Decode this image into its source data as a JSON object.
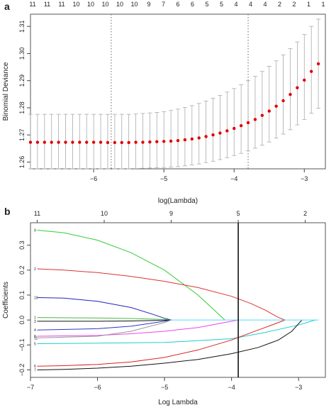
{
  "chart_data": [
    {
      "panel_label": "a",
      "type": "scatter",
      "xlabel": "log(Lambda)",
      "ylabel": "Binomial Deviance",
      "xlim": [
        -6.9,
        -2.7
      ],
      "ylim": [
        1.2575,
        1.3145
      ],
      "x_ticks": [
        -6,
        -5,
        -4,
        -3
      ],
      "y_ticks": [
        1.26,
        1.27,
        1.28,
        1.29,
        1.3,
        1.31
      ],
      "top_axis_labels": [
        "11",
        "11",
        "11",
        "10",
        "10",
        "10",
        "10",
        "10",
        "9",
        "7",
        "6",
        "6",
        "5",
        "5",
        "4",
        "4",
        "4",
        "2",
        "2",
        "1",
        "1"
      ],
      "vlines": [
        -5.75,
        -3.8
      ],
      "points": {
        "x": [
          -6.9,
          -6.8,
          -6.7,
          -6.6,
          -6.5,
          -6.4,
          -6.3,
          -6.2,
          -6.1,
          -6.0,
          -5.9,
          -5.8,
          -5.7,
          -5.6,
          -5.5,
          -5.4,
          -5.3,
          -5.2,
          -5.1,
          -5.0,
          -4.9,
          -4.8,
          -4.7,
          -4.6,
          -4.5,
          -4.4,
          -4.3,
          -4.2,
          -4.1,
          -4.0,
          -3.9,
          -3.8,
          -3.7,
          -3.6,
          -3.5,
          -3.4,
          -3.3,
          -3.2,
          -3.1,
          -3.0,
          -2.9,
          -2.8
        ],
        "y": [
          1.2673,
          1.2673,
          1.2673,
          1.2673,
          1.2673,
          1.2673,
          1.2673,
          1.2673,
          1.2673,
          1.2673,
          1.2673,
          1.2672,
          1.2672,
          1.2672,
          1.2672,
          1.2673,
          1.2673,
          1.2674,
          1.2675,
          1.2676,
          1.2677,
          1.2679,
          1.2682,
          1.2685,
          1.2689,
          1.2694,
          1.27,
          1.2707,
          1.2715,
          1.2724,
          1.2734,
          1.2745,
          1.2757,
          1.2772,
          1.2788,
          1.2806,
          1.2826,
          1.2849,
          1.2874,
          1.2902,
          1.2934,
          1.2962
        ],
        "lower": [
          1.2575,
          1.2575,
          1.2575,
          1.2575,
          1.2575,
          1.2575,
          1.2575,
          1.2575,
          1.2575,
          1.2575,
          1.2575,
          1.2575,
          1.2575,
          1.2575,
          1.2575,
          1.2576,
          1.2577,
          1.2578,
          1.2579,
          1.258,
          1.2581,
          1.2583,
          1.2586,
          1.2589,
          1.2593,
          1.2598,
          1.2603,
          1.2609,
          1.2616,
          1.2624,
          1.2632,
          1.2641,
          1.2651,
          1.2662,
          1.2674,
          1.2688,
          1.2703,
          1.2719,
          1.2737,
          1.2757,
          1.278,
          1.2798
        ],
        "upper": [
          1.2776,
          1.2776,
          1.2776,
          1.2776,
          1.2776,
          1.2776,
          1.2776,
          1.2776,
          1.2776,
          1.2776,
          1.2776,
          1.2776,
          1.2776,
          1.2776,
          1.2776,
          1.2777,
          1.2779,
          1.2781,
          1.2783,
          1.2786,
          1.279,
          1.2795,
          1.2801,
          1.2808,
          1.2816,
          1.2825,
          1.2835,
          1.2846,
          1.2858,
          1.2871,
          1.2885,
          1.29,
          1.2916,
          1.2934,
          1.2953,
          1.2973,
          1.2995,
          1.3018,
          1.3043,
          1.307,
          1.31,
          1.3127
        ]
      },
      "point_color": "#e00000",
      "errorbar_color": "#aaaaaa"
    },
    {
      "panel_label": "b",
      "type": "line",
      "xlabel": "Log Lambda",
      "ylabel": "Coefficients",
      "xlim": [
        -7.0,
        -2.6
      ],
      "ylim": [
        -0.23,
        0.39
      ],
      "x_ticks": [
        -7,
        -6,
        -5,
        -4,
        -3
      ],
      "y_ticks": [
        -0.2,
        -0.1,
        0.0,
        0.1,
        0.2,
        0.3
      ],
      "top_axis_ticks": [
        -6.9,
        -5.9,
        -4.9,
        -3.9,
        -2.9
      ],
      "top_axis_labels": [
        "11",
        "10",
        "9",
        "5",
        "2"
      ],
      "vline": -3.9,
      "series": [
        {
          "label": "9",
          "color": "#33cc33",
          "x": [
            -6.9,
            -6.5,
            -6.0,
            -5.5,
            -5.0,
            -4.5,
            -4.3,
            -4.1
          ],
          "y": [
            0.36,
            0.35,
            0.32,
            0.27,
            0.2,
            0.1,
            0.05,
            0.0
          ]
        },
        {
          "label": "2",
          "color": "#dd3333",
          "x": [
            -6.9,
            -6.5,
            -6.0,
            -5.5,
            -5.0,
            -4.5,
            -4.0,
            -3.7,
            -3.5,
            -3.3,
            -3.2
          ],
          "y": [
            0.205,
            0.2,
            0.19,
            0.175,
            0.155,
            0.13,
            0.095,
            0.065,
            0.04,
            0.01,
            0.0
          ]
        },
        {
          "label": "10",
          "color": "#2222bb",
          "x": [
            -6.9,
            -6.5,
            -6.0,
            -5.5,
            -5.2,
            -5.0,
            -4.9
          ],
          "y": [
            0.09,
            0.088,
            0.075,
            0.05,
            0.025,
            0.007,
            0.0
          ]
        },
        {
          "label": "1",
          "color": "#44bb44",
          "x": [
            -6.9,
            -6.0,
            -5.5,
            -5.0,
            -4.9
          ],
          "y": [
            0.01,
            0.008,
            0.006,
            0.002,
            0.0
          ]
        },
        {
          "label": "3",
          "color": "#111111",
          "x": [
            -6.9,
            -6.0,
            -5.5,
            -5.0,
            -4.9
          ],
          "y": [
            -0.005,
            -0.005,
            -0.004,
            -0.001,
            0.0
          ]
        },
        {
          "label": "4",
          "color": "#3333cc",
          "x": [
            -6.9,
            -6.0,
            -5.5,
            -5.0,
            -4.9
          ],
          "y": [
            -0.04,
            -0.035,
            -0.025,
            -0.005,
            0.0
          ]
        },
        {
          "label": "8",
          "color": "#ee44ee",
          "x": [
            -6.9,
            -6.0,
            -5.5,
            -5.0,
            -4.5,
            -4.2,
            -4.0,
            -3.9
          ],
          "y": [
            -0.065,
            -0.062,
            -0.055,
            -0.045,
            -0.03,
            -0.015,
            -0.005,
            0.0
          ]
        },
        {
          "label": "11",
          "color": "#999999",
          "x": [
            -6.9,
            -6.0,
            -5.5,
            -5.0,
            -4.9
          ],
          "y": [
            -0.072,
            -0.065,
            -0.045,
            -0.01,
            0.0
          ]
        },
        {
          "label": "5",
          "color": "#22cccc",
          "x": [
            -6.9,
            -6.0,
            -5.0,
            -4.0,
            -3.5,
            -3.0,
            -2.75
          ],
          "y": [
            -0.095,
            -0.093,
            -0.09,
            -0.075,
            -0.05,
            -0.02,
            0.0
          ]
        },
        {
          "label": "6",
          "color": "#dd2222",
          "x": [
            -6.9,
            -6.5,
            -6.0,
            -5.5,
            -5.0,
            -4.5,
            -4.0,
            -3.7,
            -3.5,
            -3.3,
            -3.2
          ],
          "y": [
            -0.185,
            -0.183,
            -0.178,
            -0.168,
            -0.15,
            -0.12,
            -0.08,
            -0.05,
            -0.03,
            -0.01,
            0.0
          ]
        },
        {
          "label": "7",
          "color": "#111111",
          "x": [
            -6.9,
            -6.5,
            -6.0,
            -5.5,
            -5.0,
            -4.5,
            -4.0,
            -3.6,
            -3.3,
            -3.1,
            -2.95
          ],
          "y": [
            -0.2,
            -0.198,
            -0.193,
            -0.185,
            -0.173,
            -0.158,
            -0.135,
            -0.11,
            -0.08,
            -0.045,
            0.0
          ]
        },
        {
          "label": "",
          "color": "#55ddff",
          "x": [
            -4.9,
            -2.7
          ],
          "y": [
            0.0,
            0.0
          ]
        }
      ]
    }
  ]
}
